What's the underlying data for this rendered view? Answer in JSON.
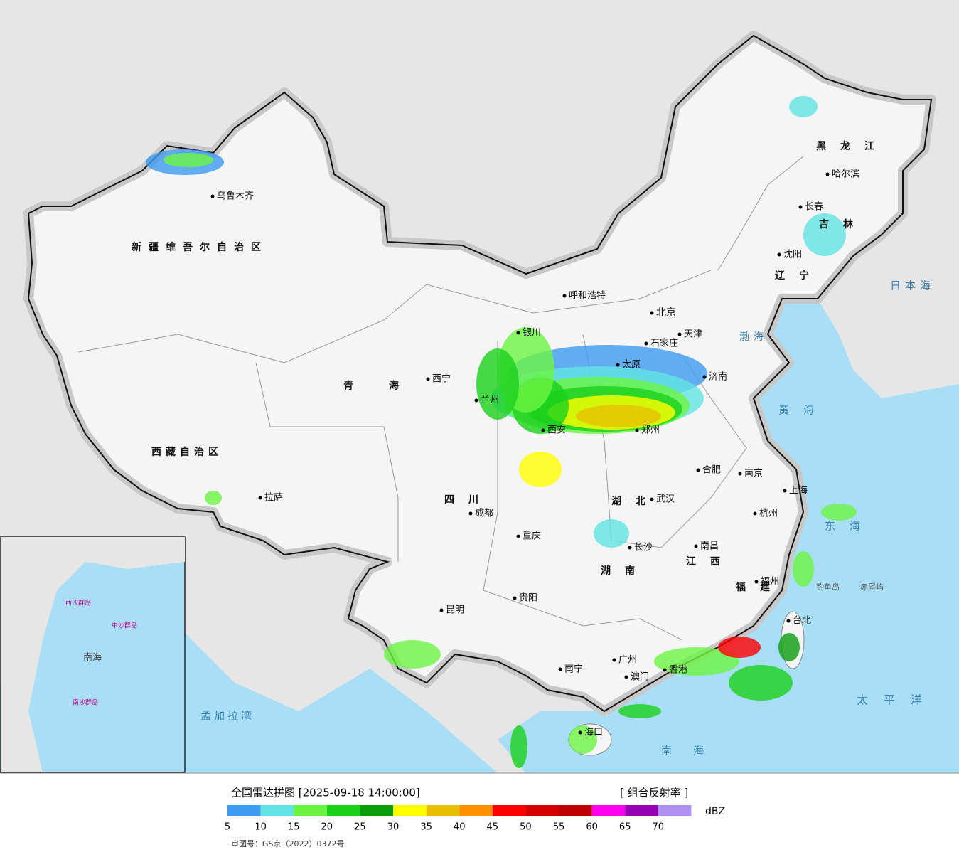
{
  "map": {
    "labels": [
      "乌鲁木齐",
      "新疆维吾尔自治区",
      "西藏自治区",
      "拉萨",
      "青海",
      "西宁",
      "兰州",
      "银川",
      "呼和浩特",
      "北京",
      "天津",
      "石家庄",
      "太原",
      "济南",
      "郑州",
      "西安",
      "合肥",
      "南京",
      "上海",
      "杭州",
      "武汉",
      "成都",
      "重庆",
      "长沙",
      "南昌",
      "福州",
      "贵阳",
      "昆明",
      "南宁",
      "广州",
      "澳门",
      "香港",
      "海口",
      "台北",
      "哈尔滨",
      "长春",
      "沈阳",
      "黑龙江",
      "吉林",
      "辽宁",
      "四川",
      "湖北",
      "湖南",
      "江西",
      "福建",
      "日本海",
      "黄海",
      "东海",
      "渤海",
      "太平洋",
      "南海",
      "孟加拉湾",
      "钓鱼岛",
      "赤尾屿"
    ],
    "inset_labels": [
      "南海",
      "南沙群岛",
      "中沙群岛",
      "西沙群岛"
    ]
  },
  "legend": {
    "title": "全国雷达拼图 [2025-09-18 14:00:00]",
    "product": "[ 组合反射率 ]",
    "unit": "dBZ",
    "bins": [
      {
        "label": "5",
        "color": "#3d9bf0"
      },
      {
        "label": "10",
        "color": "#63e3e3"
      },
      {
        "label": "15",
        "color": "#6bf542"
      },
      {
        "label": "20",
        "color": "#1ad11a"
      },
      {
        "label": "25",
        "color": "#0b9c0b"
      },
      {
        "label": "30",
        "color": "#ffff00"
      },
      {
        "label": "35",
        "color": "#e6c000"
      },
      {
        "label": "40",
        "color": "#ff9000"
      },
      {
        "label": "45",
        "color": "#ff0000"
      },
      {
        "label": "50",
        "color": "#d60000"
      },
      {
        "label": "55",
        "color": "#c00000"
      },
      {
        "label": "60",
        "color": "#ff00f0"
      },
      {
        "label": "65",
        "color": "#9600b4"
      },
      {
        "label": "70",
        "color": "#ad90f0"
      }
    ],
    "footer": "审图号：GS京（2022）0372号"
  }
}
